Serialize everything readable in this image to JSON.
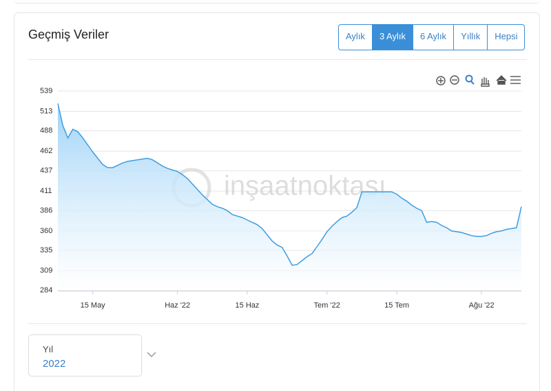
{
  "header": {
    "title": "Geçmiş Veriler"
  },
  "range_buttons": {
    "items": [
      "Aylık",
      "3 Aylık",
      "6 Aylık",
      "Yıllık",
      "Hepsi"
    ],
    "active": 1
  },
  "chart_data": {
    "type": "area",
    "watermark": "inşaatnoktası",
    "categories": [
      null,
      null,
      null,
      null,
      null,
      null,
      null,
      "15 May",
      null,
      null,
      null,
      null,
      null,
      null,
      null,
      null,
      null,
      null,
      null,
      null,
      null,
      null,
      null,
      null,
      "Haz '22",
      null,
      null,
      null,
      null,
      null,
      null,
      null,
      null,
      null,
      null,
      null,
      null,
      null,
      "15 Haz",
      null,
      null,
      null,
      null,
      null,
      null,
      null,
      null,
      null,
      null,
      null,
      null,
      null,
      null,
      null,
      "Tem '22",
      null,
      null,
      null,
      null,
      null,
      null,
      null,
      null,
      null,
      null,
      null,
      null,
      null,
      "15 Tem",
      null,
      null,
      null,
      null,
      null,
      null,
      null,
      null,
      null,
      null,
      null,
      null,
      null,
      null,
      null,
      null,
      "Ağu '22",
      null,
      null,
      null,
      null,
      null,
      null,
      null,
      null
    ],
    "series": [
      {
        "color": "#3d9de0",
        "values": [
          523,
          495,
          479,
          490,
          487,
          479,
          470,
          461,
          453,
          445,
          441,
          441,
          444,
          447,
          449,
          450,
          451,
          452,
          453,
          451,
          447,
          443,
          440,
          438,
          436,
          432,
          427,
          420,
          413,
          406,
          400,
          394,
          391,
          389,
          386,
          381,
          379,
          377,
          374,
          371,
          368,
          363,
          355,
          347,
          342,
          339,
          328,
          316,
          317,
          322,
          327,
          331,
          340,
          349,
          359,
          366,
          372,
          377,
          379,
          384,
          390,
          410,
          410,
          410,
          410,
          410,
          410,
          410,
          407,
          402,
          398,
          393,
          389,
          386,
          371,
          372,
          371,
          367,
          364,
          360,
          359,
          358,
          356,
          354,
          353,
          353,
          354,
          357,
          359,
          360,
          362,
          363,
          364,
          391
        ]
      }
    ],
    "ylim": [
      284,
      539
    ],
    "yticks": [
      284,
      309,
      335,
      360,
      386,
      411,
      437,
      462,
      488,
      513,
      539
    ],
    "grid": true
  },
  "year_select": {
    "label": "Yıl",
    "value": "2022"
  }
}
